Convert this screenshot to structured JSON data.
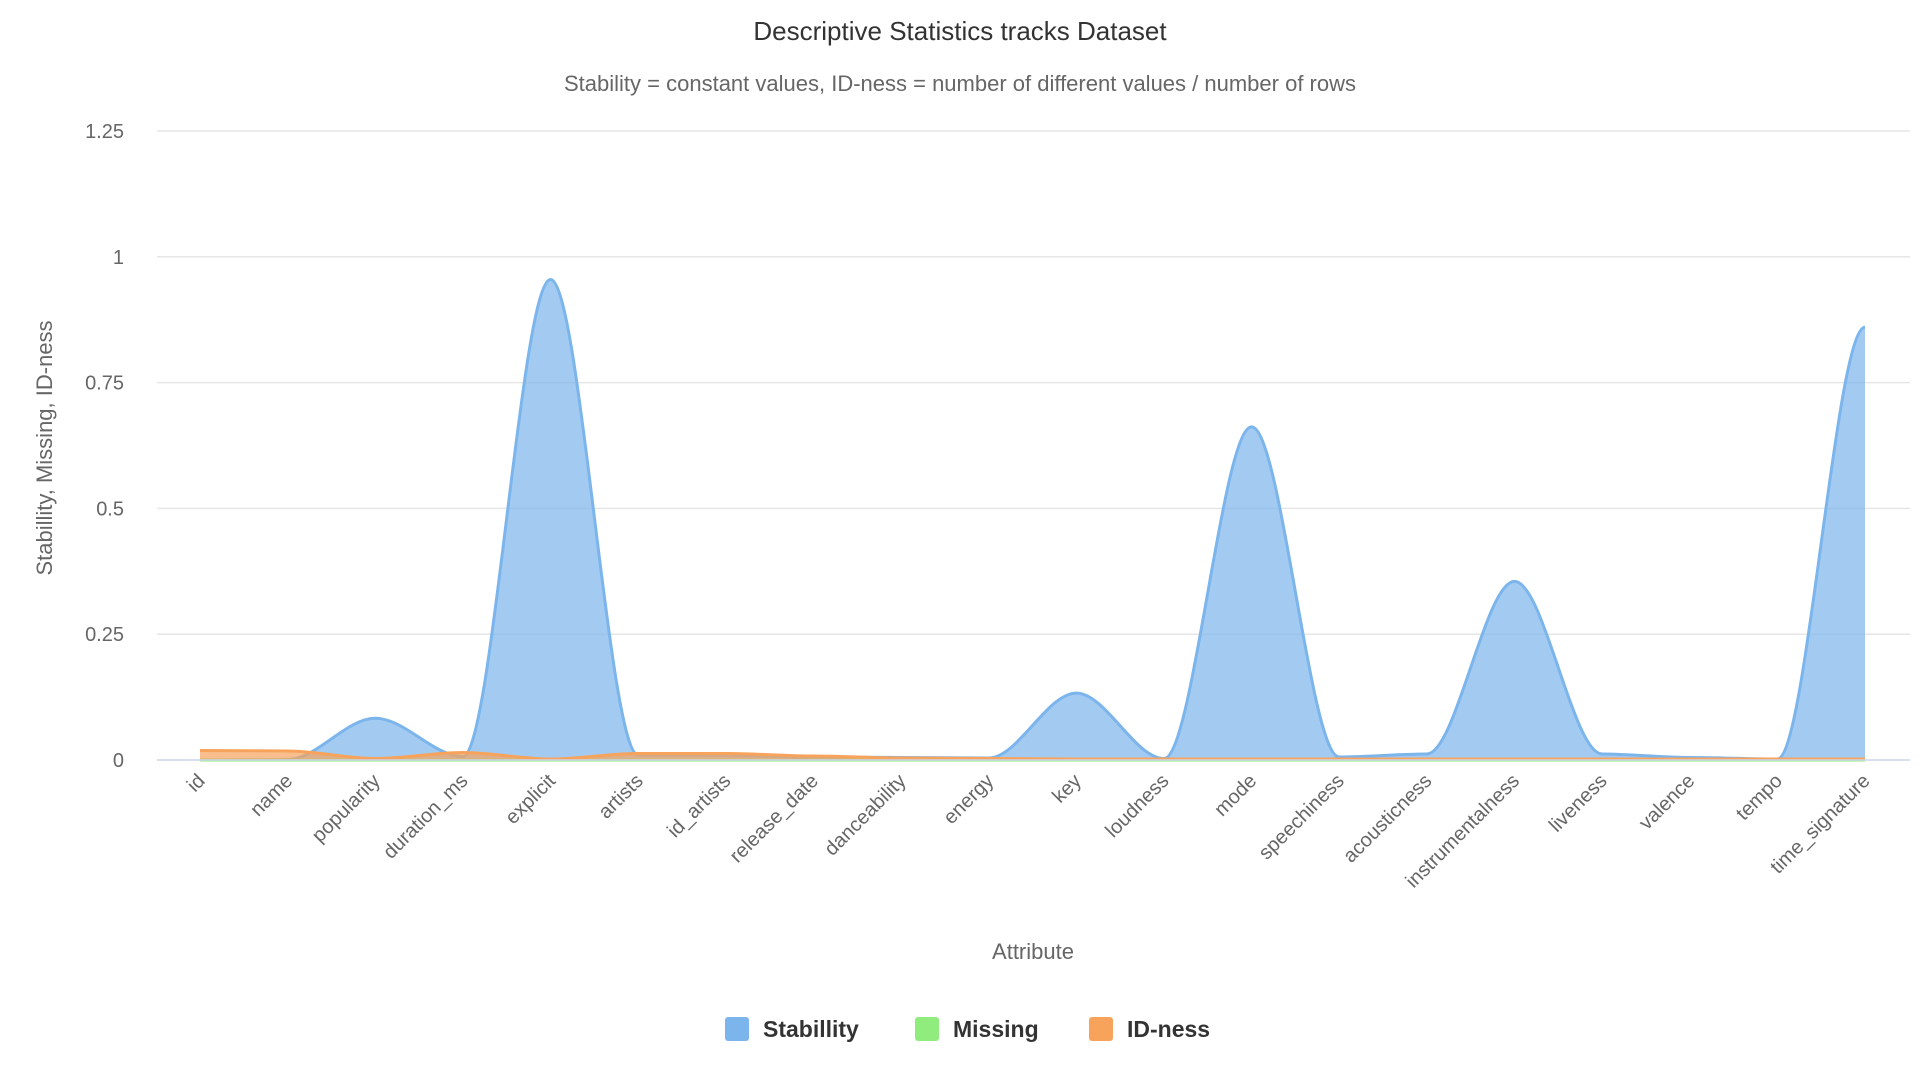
{
  "chart_data": {
    "type": "area",
    "title": "Descriptive Statistics tracks Dataset",
    "subtitle": "Stability = constant values, ID-ness = number of different values / number of rows",
    "xlabel": "Attribute",
    "ylabel": "Stabillity, Missing, ID-ness",
    "ylim": [
      0,
      1.25
    ],
    "yticks": [
      0,
      0.25,
      0.5,
      0.75,
      1,
      1.25
    ],
    "ytick_labels": [
      "0",
      "0.25",
      "0.5",
      "0.75",
      "1",
      "1.25"
    ],
    "grid": true,
    "legend_position": "bottom-center",
    "categories": [
      "id",
      "name",
      "popularity",
      "duration_ms",
      "explicit",
      "artists",
      "id_artists",
      "release_date",
      "danceability",
      "energy",
      "key",
      "loudness",
      "mode",
      "speechiness",
      "acousticness",
      "instrumentalness",
      "liveness",
      "valence",
      "tempo",
      "time_signature"
    ],
    "series": [
      {
        "name": "Stabillity",
        "color": "#7cb5ec",
        "values": [
          0.0,
          0.001,
          0.083,
          0.007,
          0.955,
          0.01,
          0.009,
          0.006,
          0.005,
          0.004,
          0.133,
          0.003,
          0.662,
          0.006,
          0.012,
          0.355,
          0.012,
          0.005,
          0.002,
          0.86
        ]
      },
      {
        "name": "Missing",
        "color": "#90ed7d",
        "values": [
          0,
          0,
          0,
          0,
          0,
          0,
          0,
          0,
          0,
          0,
          0,
          0,
          0,
          0,
          0,
          0,
          0,
          0,
          0,
          0
        ]
      },
      {
        "name": "ID-ness",
        "color": "#f7a35c",
        "values": [
          0.019,
          0.018,
          0.003,
          0.015,
          0.002,
          0.013,
          0.013,
          0.008,
          0.004,
          0.003,
          0.002,
          0.002,
          0.002,
          0.002,
          0.002,
          0.002,
          0.002,
          0.002,
          0.002,
          0.002
        ]
      }
    ]
  }
}
